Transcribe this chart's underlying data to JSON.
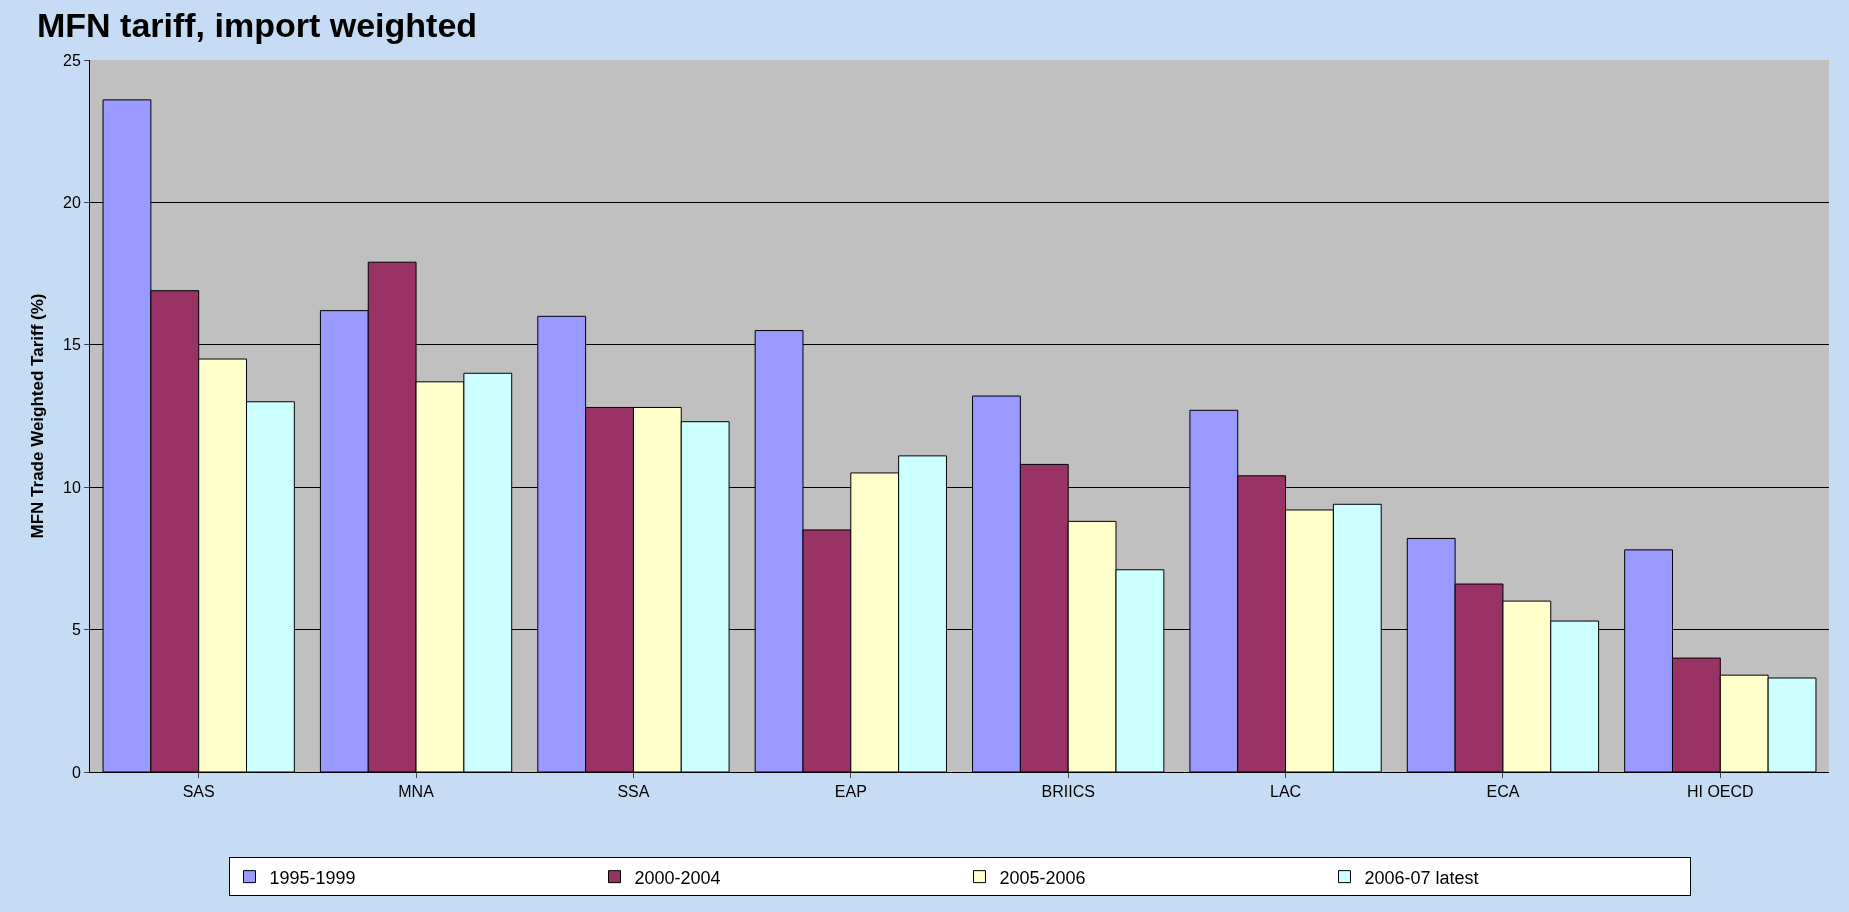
{
  "chart_data": {
    "type": "bar",
    "title": "MFN tariff, import weighted",
    "ylabel": "MFN Trade Weighted Tariff (%)",
    "categories": [
      "SAS",
      "MNA",
      "SSA",
      "EAP",
      "BRIICS",
      "LAC",
      "ECA",
      "HI OECD"
    ],
    "series": [
      {
        "name": "1995-1999",
        "color": "#9999ff",
        "values": [
          23.6,
          16.2,
          16.0,
          15.5,
          13.2,
          12.7,
          8.2,
          7.8
        ]
      },
      {
        "name": "2000-2004",
        "color": "#993366",
        "values": [
          16.9,
          17.9,
          12.8,
          8.5,
          10.8,
          10.4,
          6.6,
          4.0
        ]
      },
      {
        "name": "2005-2006",
        "color": "#ffffcc",
        "values": [
          14.5,
          13.7,
          12.8,
          10.5,
          8.8,
          9.2,
          6.0,
          3.4
        ]
      },
      {
        "name": "2006-07 latest",
        "color": "#ccffff",
        "values": [
          13.0,
          14.0,
          12.3,
          11.1,
          7.1,
          9.4,
          5.3,
          3.3
        ]
      }
    ],
    "ylim": [
      0,
      25
    ],
    "yticks": [
      0,
      5,
      10,
      15,
      20,
      25
    ],
    "grid": "y",
    "legend": "bottom"
  }
}
